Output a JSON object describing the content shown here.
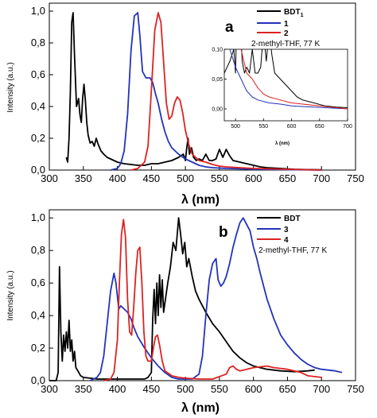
{
  "chart_data": [
    {
      "panel": "a",
      "type": "line",
      "xlabel": "λ (nm)",
      "ylabel": "Intensity (a.u.)",
      "xlim": [
        300,
        750
      ],
      "ylim": [
        0,
        1.05
      ],
      "xticks": [
        300,
        350,
        400,
        450,
        500,
        550,
        600,
        650,
        700,
        750
      ],
      "yticks": [
        0.0,
        0.2,
        0.4,
        0.6,
        0.8,
        1.0
      ],
      "tick_labels_y": [
        "0,0",
        "0,2",
        "0,4",
        "0,6",
        "0,8",
        "1,0"
      ],
      "legend_position": "top-right",
      "legend_note": "2-methyl-THF, 77 K",
      "series": [
        {
          "label": "BDT",
          "label_sub": "1",
          "color": "#000000",
          "x": [
            325,
            327,
            329,
            331,
            333,
            335,
            337,
            340,
            343,
            345,
            347,
            349,
            351,
            353,
            355,
            357,
            360,
            363,
            366,
            369,
            372,
            376,
            380,
            385,
            390,
            395,
            400,
            410,
            420,
            430,
            440,
            450,
            460,
            470,
            480,
            490,
            497,
            500,
            502,
            504,
            506,
            509,
            512,
            516,
            520,
            525,
            530,
            535,
            540,
            545,
            550,
            555,
            560,
            565,
            570,
            580,
            590,
            600,
            610,
            620,
            640,
            660,
            680,
            700
          ],
          "y": [
            0.08,
            0.05,
            0.2,
            0.5,
            0.93,
            0.99,
            0.72,
            0.4,
            0.45,
            0.35,
            0.3,
            0.45,
            0.54,
            0.44,
            0.3,
            0.22,
            0.17,
            0.18,
            0.15,
            0.2,
            0.16,
            0.12,
            0.1,
            0.08,
            0.07,
            0.06,
            0.05,
            0.04,
            0.035,
            0.03,
            0.03,
            0.04,
            0.04,
            0.05,
            0.06,
            0.08,
            0.1,
            0.06,
            0.14,
            0.2,
            0.1,
            0.14,
            0.08,
            0.06,
            0.07,
            0.06,
            0.1,
            0.06,
            0.06,
            0.07,
            0.13,
            0.08,
            0.13,
            0.09,
            0.06,
            0.05,
            0.04,
            0.03,
            0.02,
            0.015,
            0.01,
            0.005,
            0.003,
            0.002
          ]
        },
        {
          "label": "1",
          "color": "#2233bb",
          "x": [
            390,
            400,
            405,
            410,
            415,
            420,
            425,
            430,
            433,
            437,
            442,
            448,
            452,
            456,
            460,
            465,
            470,
            475,
            480,
            490,
            500,
            510,
            520,
            530,
            540,
            560,
            580,
            600,
            640,
            700
          ],
          "y": [
            0.0,
            0.01,
            0.04,
            0.12,
            0.35,
            0.75,
            0.97,
            0.99,
            0.85,
            0.62,
            0.58,
            0.58,
            0.55,
            0.48,
            0.42,
            0.32,
            0.24,
            0.18,
            0.14,
            0.1,
            0.07,
            0.05,
            0.03,
            0.02,
            0.015,
            0.01,
            0.008,
            0.005,
            0.003,
            0.0
          ]
        },
        {
          "label": "2",
          "color": "#dd2222",
          "x": [
            420,
            430,
            440,
            445,
            450,
            455,
            460,
            464,
            468,
            472,
            476,
            480,
            484,
            488,
            492,
            496,
            500,
            505,
            510,
            520,
            530,
            540,
            550,
            560,
            580,
            600,
            650,
            700
          ],
          "y": [
            0.0,
            0.01,
            0.05,
            0.15,
            0.5,
            0.88,
            0.99,
            0.93,
            0.68,
            0.42,
            0.32,
            0.34,
            0.42,
            0.46,
            0.44,
            0.36,
            0.25,
            0.16,
            0.1,
            0.06,
            0.05,
            0.035,
            0.025,
            0.02,
            0.015,
            0.01,
            0.005,
            0.0
          ]
        }
      ],
      "inset": {
        "xlim": [
          480,
          700
        ],
        "ylim": [
          -0.02,
          0.1
        ],
        "xticks": [
          500,
          550,
          600,
          650,
          700
        ],
        "yticks": [
          0.0,
          0.05,
          0.1
        ],
        "tick_labels_y": [
          "0,00",
          "0,05",
          "0,10"
        ],
        "xlabel": "λ (nm)"
      }
    },
    {
      "panel": "b",
      "type": "line",
      "xlabel": "λ (nm)",
      "ylabel": "Intensity (a.u.)",
      "xlim": [
        300,
        750
      ],
      "ylim": [
        0,
        1.05
      ],
      "xticks": [
        300,
        350,
        400,
        450,
        500,
        550,
        600,
        650,
        700,
        750
      ],
      "yticks": [
        0.0,
        0.2,
        0.4,
        0.6,
        0.8,
        1.0
      ],
      "tick_labels_y": [
        "0,0",
        "0,2",
        "0,4",
        "0,6",
        "0,8",
        "1,0"
      ],
      "legend_position": "top-right",
      "legend_note": "2-methyl-THF, 77 K",
      "series": [
        {
          "label": "BDT",
          "color": "#000000",
          "x": [
            300,
            310,
            313,
            315,
            317,
            319,
            321,
            323,
            325,
            327,
            329,
            331,
            333,
            335,
            337,
            339,
            342,
            346,
            350,
            360,
            370,
            380,
            390,
            400,
            410,
            420,
            430,
            440,
            445,
            450,
            452,
            454,
            456,
            458,
            460,
            462,
            464,
            466,
            468,
            470,
            474,
            478,
            482,
            486,
            490,
            493,
            496,
            499,
            502,
            505,
            510,
            515,
            520,
            530,
            540,
            550,
            560,
            570,
            580,
            590,
            600,
            620,
            640,
            660,
            680,
            690
          ],
          "y": [
            0.0,
            0.0,
            0.05,
            0.7,
            0.3,
            0.12,
            0.28,
            0.18,
            0.3,
            0.2,
            0.37,
            0.18,
            0.25,
            0.12,
            0.18,
            0.08,
            0.06,
            0.03,
            0.02,
            0.015,
            0.01,
            0.01,
            0.01,
            0.01,
            0.01,
            0.01,
            0.01,
            0.01,
            0.02,
            0.05,
            0.38,
            0.56,
            0.35,
            0.6,
            0.4,
            0.65,
            0.45,
            0.62,
            0.42,
            0.48,
            0.6,
            0.7,
            0.85,
            0.8,
            1.0,
            0.9,
            0.78,
            0.85,
            0.7,
            0.75,
            0.64,
            0.55,
            0.5,
            0.42,
            0.35,
            0.3,
            0.24,
            0.18,
            0.14,
            0.11,
            0.09,
            0.07,
            0.06,
            0.055,
            0.06,
            0.065
          ]
        },
        {
          "label": "3",
          "color": "#2233bb",
          "x": [
            360,
            370,
            375,
            380,
            385,
            390,
            395,
            398,
            402,
            405,
            410,
            415,
            420,
            425,
            430,
            440,
            450,
            460,
            470,
            480,
            490,
            500,
            510,
            520,
            525,
            530,
            535,
            540,
            545,
            548,
            552,
            556,
            560,
            565,
            570,
            575,
            580,
            585,
            590,
            595,
            600,
            605,
            610,
            620,
            630,
            640,
            650,
            660,
            670,
            680,
            690,
            700,
            720,
            730
          ],
          "y": [
            0.0,
            0.02,
            0.05,
            0.15,
            0.35,
            0.55,
            0.66,
            0.6,
            0.44,
            0.46,
            0.44,
            0.42,
            0.38,
            0.32,
            0.27,
            0.2,
            0.14,
            0.09,
            0.05,
            0.02,
            0.01,
            0.01,
            0.01,
            0.04,
            0.15,
            0.4,
            0.62,
            0.72,
            0.75,
            0.62,
            0.58,
            0.6,
            0.64,
            0.72,
            0.82,
            0.9,
            0.97,
            1.0,
            0.96,
            0.92,
            0.82,
            0.75,
            0.66,
            0.5,
            0.38,
            0.28,
            0.22,
            0.17,
            0.13,
            0.1,
            0.08,
            0.07,
            0.06,
            0.05
          ]
        },
        {
          "label": "4",
          "color": "#dd2222",
          "x": [
            380,
            390,
            395,
            400,
            403,
            406,
            409,
            412,
            415,
            418,
            421,
            424,
            427,
            430,
            433,
            436,
            439,
            442,
            445,
            450,
            453,
            456,
            459,
            462,
            466,
            470,
            480,
            490,
            500,
            520,
            540,
            560,
            565,
            570,
            575,
            580,
            590,
            600,
            610,
            620,
            630,
            640,
            650,
            660,
            670,
            680,
            700
          ],
          "y": [
            0.0,
            0.01,
            0.05,
            0.25,
            0.6,
            0.9,
            0.99,
            0.88,
            0.5,
            0.3,
            0.28,
            0.45,
            0.66,
            0.8,
            0.82,
            0.6,
            0.3,
            0.15,
            0.12,
            0.12,
            0.2,
            0.27,
            0.28,
            0.22,
            0.12,
            0.06,
            0.03,
            0.02,
            0.015,
            0.01,
            0.01,
            0.04,
            0.08,
            0.09,
            0.07,
            0.06,
            0.07,
            0.08,
            0.085,
            0.09,
            0.08,
            0.075,
            0.07,
            0.06,
            0.05,
            0.03,
            0.02
          ]
        }
      ]
    }
  ]
}
